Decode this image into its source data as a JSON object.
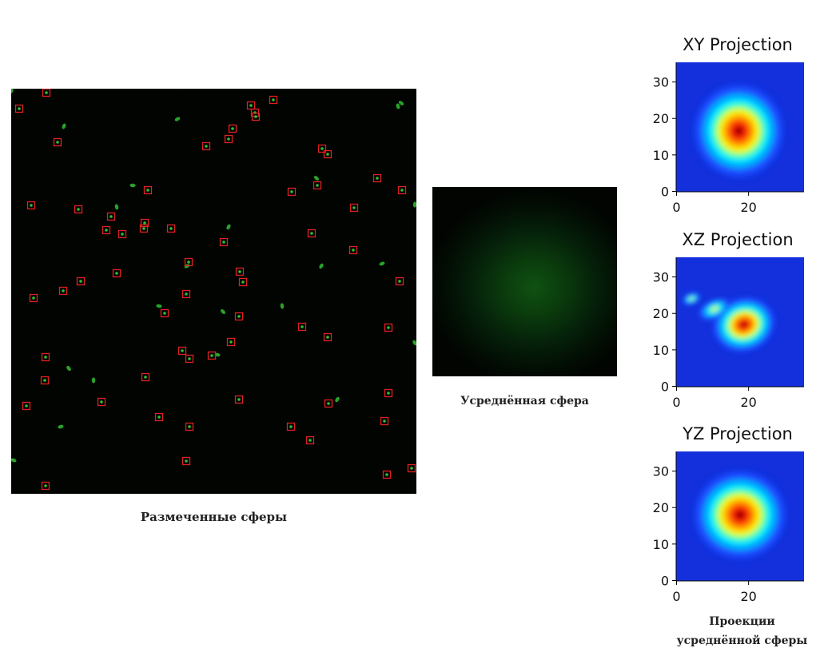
{
  "captions": {
    "marked_spheres": "Размеченные сферы",
    "averaged_sphere": "Усреднённая сфера",
    "projections_line1": "Проекции",
    "projections_line2": "усреднённой сферы"
  },
  "projections": [
    {
      "title": "XY Projection",
      "y_ticks": [
        "0",
        "10",
        "20",
        "30"
      ],
      "x_ticks": [
        "0",
        "20"
      ]
    },
    {
      "title": "XZ Projection",
      "y_ticks": [
        "0",
        "10",
        "20",
        "30"
      ],
      "x_ticks": [
        "0",
        "20"
      ]
    },
    {
      "title": "YZ Projection",
      "y_ticks": [
        "0",
        "10",
        "20",
        "30"
      ],
      "x_ticks": [
        "0",
        "20"
      ]
    }
  ],
  "colors": {
    "background_dark": "#010401",
    "sphere_green": "#2fbf2f",
    "marker_red": "#e02020"
  }
}
